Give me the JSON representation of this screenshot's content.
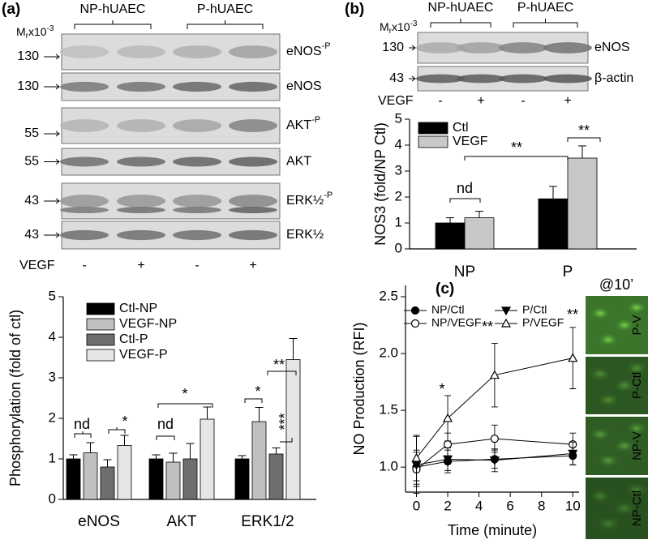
{
  "panels": {
    "a": "(a)",
    "b": "(b)",
    "c": "(c)"
  },
  "blot_a": {
    "groups": [
      "NP-hUAEC",
      "P-hUAEC"
    ],
    "mr": {
      "m": "M",
      "sub": "r",
      "x": "x10",
      "sup": "-3"
    },
    "rows": [
      {
        "label": "eNOS",
        "sup": "-P",
        "mw": 130
      },
      {
        "label": "eNOS",
        "mw": 130
      },
      {
        "label": "AKT",
        "sup": "-P",
        "mw": 55
      },
      {
        "label": "AKT",
        "mw": 55
      },
      {
        "label": "ERK½",
        "sup": "-P",
        "mw": 43
      },
      {
        "label": "ERK½",
        "mw": 43
      }
    ],
    "treatment": "VEGF",
    "lanes": [
      "-",
      "+",
      "-",
      "+"
    ]
  },
  "blot_b": {
    "groups": [
      "NP-hUAEC",
      "P-hUAEC"
    ],
    "mr": {
      "m": "M",
      "sub": "r",
      "x": "x10",
      "sup": "-3"
    },
    "rows": [
      {
        "label": "eNOS",
        "mw": 130
      },
      {
        "label": "β-actin",
        "mw": 43
      }
    ],
    "treatment": "VEGF",
    "lanes": [
      "-",
      "+",
      "-",
      "+"
    ]
  },
  "micrograph": {
    "title": "@10’",
    "labels": [
      "P-V",
      "P-Ctl",
      "NP-V",
      "NP-Ctl"
    ]
  },
  "chart_data": [
    {
      "type": "bar",
      "ylabel": "Phosphorylation (fold of ctl)",
      "categories": [
        "eNOS",
        "AKT",
        "ERK1/2"
      ],
      "series": [
        {
          "name": "Ctl-NP",
          "color": "#000000",
          "values": [
            1.0,
            1.0,
            1.0
          ],
          "errors": [
            0.1,
            0.1,
            0.08
          ]
        },
        {
          "name": "VEGF-NP",
          "color": "#c0c0c0",
          "values": [
            1.15,
            0.92,
            1.92
          ],
          "errors": [
            0.25,
            0.22,
            0.35
          ]
        },
        {
          "name": "Ctl-P",
          "color": "#6e6e6e",
          "values": [
            0.8,
            1.0,
            1.12
          ],
          "errors": [
            0.18,
            0.38,
            0.15
          ]
        },
        {
          "name": "VEGF-P",
          "color": "#e6e6e6",
          "values": [
            1.33,
            1.98,
            3.45
          ],
          "errors": [
            0.25,
            0.3,
            0.52
          ]
        }
      ],
      "ylim": [
        0,
        5
      ],
      "yticks": [
        0,
        1,
        2,
        3,
        4,
        5
      ],
      "annotations": [
        "nd",
        "*",
        "nd",
        "*",
        "*",
        "**",
        "***"
      ]
    },
    {
      "type": "bar",
      "ylabel": "NOS3 (fold/NP Ctl)",
      "categories": [
        "NP",
        "P"
      ],
      "series": [
        {
          "name": "Ctl",
          "color": "#000000",
          "values": [
            1.0,
            1.93
          ],
          "errors": [
            0.2,
            0.48
          ]
        },
        {
          "name": "VEGF",
          "color": "#c8c8c8",
          "values": [
            1.2,
            3.5
          ],
          "errors": [
            0.25,
            0.47
          ]
        }
      ],
      "ylim": [
        0,
        5
      ],
      "yticks": [
        0,
        1,
        2,
        3,
        4,
        5
      ],
      "annotations": [
        "nd",
        "**",
        "**"
      ]
    },
    {
      "type": "line",
      "xlabel": "Time (minute)",
      "ylabel": "NO Production (RFI)",
      "x": [
        0,
        2,
        5,
        10
      ],
      "series": [
        {
          "name": "NP/Ctl",
          "color": "#000000",
          "marker": "circle-filled",
          "values": [
            1.0,
            1.05,
            1.07,
            1.1
          ],
          "errors": [
            0.15,
            0.1,
            0.08,
            0.08
          ]
        },
        {
          "name": "NP/VEGF",
          "color": "#000000",
          "marker": "circle-open",
          "values": [
            0.98,
            1.2,
            1.25,
            1.2
          ],
          "errors": [
            0.15,
            0.1,
            0.12,
            0.1
          ]
        },
        {
          "name": "P/Ctl",
          "color": "#000000",
          "marker": "triangle-down-filled",
          "values": [
            1.02,
            1.07,
            1.06,
            1.12
          ],
          "errors": [
            0.25,
            0.1,
            0.1,
            0.1
          ]
        },
        {
          "name": "P/VEGF",
          "color": "#000000",
          "marker": "triangle-up-open",
          "values": [
            1.08,
            1.43,
            1.81,
            1.96
          ],
          "errors": [
            0.2,
            0.2,
            0.28,
            0.27
          ]
        }
      ],
      "xlim": [
        -0.7,
        10.4
      ],
      "xticks": [
        0,
        2,
        4,
        6,
        8,
        10
      ],
      "ylim": [
        0.78,
        2.6
      ],
      "yticks": [
        {
          "value": 1.0,
          "label": "1.0"
        },
        {
          "value": 1.5,
          "label": "1.5"
        },
        {
          "value": 2.0,
          "label": "2.0"
        },
        {
          "value": 2.5,
          "label": "2.5"
        }
      ],
      "annotations": [
        "*",
        "**",
        "**"
      ]
    }
  ]
}
